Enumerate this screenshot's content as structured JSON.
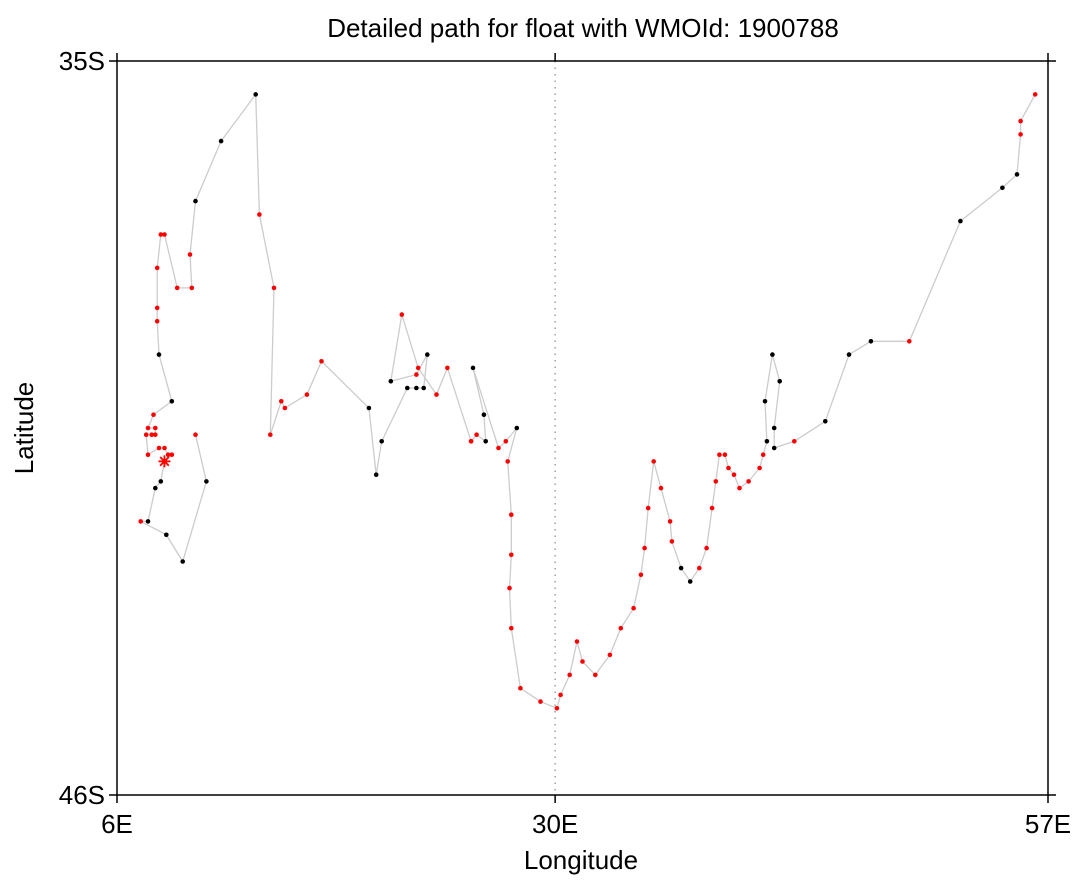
{
  "chart_data": {
    "type": "scatter",
    "title": "Detailed path for float with WMOId: 1900788",
    "xlabel": "Longitude",
    "ylabel": "Latitude",
    "xlim": [
      6,
      57
    ],
    "ylim": [
      -46,
      -35
    ],
    "x_ticks": [
      {
        "value": 6,
        "label": "6E"
      },
      {
        "value": 30,
        "label": "30E"
      },
      {
        "value": 57,
        "label": "57E"
      }
    ],
    "y_ticks": [
      {
        "value": -35,
        "label": "35S"
      },
      {
        "value": -46,
        "label": "46S"
      }
    ],
    "reference_line": {
      "x": 30,
      "style": "dotted"
    },
    "grid": false,
    "legend": "none",
    "colors": {
      "path": "#cccccc",
      "profile_marker": "#ff0000",
      "position_marker": "#000000",
      "deploy_marker": "#ff0000",
      "axes": "#000000"
    },
    "deploy_point": {
      "lon": 8.6,
      "lat": -41.0,
      "marker": "asterisk"
    },
    "series": [
      {
        "values": [
          {
            "lon": 8.6,
            "lat": -41.0,
            "c": "r"
          },
          {
            "lon": 9.0,
            "lat": -40.9,
            "c": "r"
          },
          {
            "lon": 8.8,
            "lat": -40.9,
            "c": "r"
          },
          {
            "lon": 8.6,
            "lat": -40.8,
            "c": "r"
          },
          {
            "lon": 8.3,
            "lat": -40.8,
            "c": "r"
          },
          {
            "lon": 7.7,
            "lat": -40.9,
            "c": "r"
          },
          {
            "lon": 7.6,
            "lat": -40.6,
            "c": "r"
          },
          {
            "lon": 7.9,
            "lat": -40.6,
            "c": "r"
          },
          {
            "lon": 8.1,
            "lat": -40.6,
            "c": "r"
          },
          {
            "lon": 8.1,
            "lat": -40.5,
            "c": "r"
          },
          {
            "lon": 7.7,
            "lat": -40.5,
            "c": "r"
          },
          {
            "lon": 8.0,
            "lat": -40.3,
            "c": "r"
          },
          {
            "lon": 9.0,
            "lat": -40.1,
            "c": "k"
          },
          {
            "lon": 8.3,
            "lat": -39.4,
            "c": "k"
          },
          {
            "lon": 8.2,
            "lat": -38.9,
            "c": "r"
          },
          {
            "lon": 8.2,
            "lat": -38.7,
            "c": "r"
          },
          {
            "lon": 8.2,
            "lat": -38.1,
            "c": "r"
          },
          {
            "lon": 8.4,
            "lat": -37.6,
            "c": "r"
          },
          {
            "lon": 8.6,
            "lat": -37.6,
            "c": "r"
          },
          {
            "lon": 9.3,
            "lat": -38.4,
            "c": "r"
          },
          {
            "lon": 10.1,
            "lat": -38.4,
            "c": "r"
          },
          {
            "lon": 10.0,
            "lat": -37.9,
            "c": "r"
          },
          {
            "lon": 10.3,
            "lat": -37.1,
            "c": "k"
          },
          {
            "lon": 11.7,
            "lat": -36.2,
            "c": "k"
          },
          {
            "lon": 13.6,
            "lat": -35.5,
            "c": "k"
          },
          {
            "lon": 13.8,
            "lat": -37.3,
            "c": "r"
          },
          {
            "lon": 14.6,
            "lat": -38.4,
            "c": "r"
          },
          {
            "lon": 14.4,
            "lat": -40.6,
            "c": "r"
          },
          {
            "lon": 15.0,
            "lat": -40.1,
            "c": "r"
          },
          {
            "lon": 15.2,
            "lat": -40.2,
            "c": "r"
          },
          {
            "lon": 16.4,
            "lat": -40.0,
            "c": "r"
          },
          {
            "lon": 17.2,
            "lat": -39.5,
            "c": "r"
          },
          {
            "lon": 19.8,
            "lat": -40.2,
            "c": "k"
          },
          {
            "lon": 20.2,
            "lat": -41.2,
            "c": "k"
          },
          {
            "lon": 20.5,
            "lat": -40.7,
            "c": "k"
          },
          {
            "lon": 21.9,
            "lat": -39.9,
            "c": "k"
          },
          {
            "lon": 22.4,
            "lat": -39.9,
            "c": "k"
          },
          {
            "lon": 22.8,
            "lat": -39.9,
            "c": "k"
          },
          {
            "lon": 23.0,
            "lat": -39.4,
            "c": "k"
          },
          {
            "lon": 22.4,
            "lat": -39.7,
            "c": "r"
          },
          {
            "lon": 21.0,
            "lat": -39.8,
            "c": "k"
          },
          {
            "lon": 21.6,
            "lat": -38.8,
            "c": "r"
          },
          {
            "lon": 22.5,
            "lat": -39.6,
            "c": "r"
          },
          {
            "lon": 23.5,
            "lat": -40.0,
            "c": "r"
          },
          {
            "lon": 24.1,
            "lat": -39.6,
            "c": "r"
          },
          {
            "lon": 25.4,
            "lat": -40.7,
            "c": "r"
          },
          {
            "lon": 25.4,
            "lat": -40.7,
            "c": "r"
          },
          {
            "lon": 25.7,
            "lat": -40.6,
            "c": "r"
          },
          {
            "lon": 26.2,
            "lat": -40.7,
            "c": "k"
          },
          {
            "lon": 26.1,
            "lat": -40.3,
            "c": "k"
          },
          {
            "lon": 25.5,
            "lat": -39.6,
            "c": "k"
          },
          {
            "lon": 26.9,
            "lat": -40.8,
            "c": "r"
          },
          {
            "lon": 27.3,
            "lat": -40.7,
            "c": "r"
          },
          {
            "lon": 27.9,
            "lat": -40.5,
            "c": "k"
          },
          {
            "lon": 27.4,
            "lat": -41.0,
            "c": "r"
          },
          {
            "lon": 27.6,
            "lat": -41.8,
            "c": "r"
          },
          {
            "lon": 27.6,
            "lat": -42.4,
            "c": "r"
          },
          {
            "lon": 27.5,
            "lat": -42.9,
            "c": "r"
          },
          {
            "lon": 27.6,
            "lat": -43.5,
            "c": "r"
          },
          {
            "lon": 28.1,
            "lat": -44.4,
            "c": "r"
          },
          {
            "lon": 29.2,
            "lat": -44.6,
            "c": "r"
          },
          {
            "lon": 30.1,
            "lat": -44.7,
            "c": "r"
          },
          {
            "lon": 30.3,
            "lat": -44.5,
            "c": "r"
          },
          {
            "lon": 30.8,
            "lat": -44.2,
            "c": "r"
          },
          {
            "lon": 31.2,
            "lat": -43.7,
            "c": "r"
          },
          {
            "lon": 31.5,
            "lat": -44.0,
            "c": "r"
          },
          {
            "lon": 32.2,
            "lat": -44.2,
            "c": "r"
          },
          {
            "lon": 33.0,
            "lat": -43.9,
            "c": "r"
          },
          {
            "lon": 33.6,
            "lat": -43.5,
            "c": "r"
          },
          {
            "lon": 34.3,
            "lat": -43.2,
            "c": "r"
          },
          {
            "lon": 34.7,
            "lat": -42.7,
            "c": "r"
          },
          {
            "lon": 34.9,
            "lat": -42.3,
            "c": "r"
          },
          {
            "lon": 35.1,
            "lat": -41.7,
            "c": "r"
          },
          {
            "lon": 35.4,
            "lat": -41.0,
            "c": "r"
          },
          {
            "lon": 35.8,
            "lat": -41.4,
            "c": "r"
          },
          {
            "lon": 36.3,
            "lat": -41.9,
            "c": "r"
          },
          {
            "lon": 36.4,
            "lat": -42.2,
            "c": "r"
          },
          {
            "lon": 36.9,
            "lat": -42.6,
            "c": "k"
          },
          {
            "lon": 37.4,
            "lat": -42.8,
            "c": "k"
          },
          {
            "lon": 37.9,
            "lat": -42.6,
            "c": "r"
          },
          {
            "lon": 38.3,
            "lat": -42.3,
            "c": "r"
          },
          {
            "lon": 38.6,
            "lat": -41.7,
            "c": "r"
          },
          {
            "lon": 38.8,
            "lat": -41.3,
            "c": "r"
          },
          {
            "lon": 39.0,
            "lat": -40.9,
            "c": "r"
          },
          {
            "lon": 39.3,
            "lat": -40.9,
            "c": "r"
          },
          {
            "lon": 39.5,
            "lat": -41.1,
            "c": "r"
          },
          {
            "lon": 39.8,
            "lat": -41.2,
            "c": "r"
          },
          {
            "lon": 40.1,
            "lat": -41.4,
            "c": "r"
          },
          {
            "lon": 40.6,
            "lat": -41.3,
            "c": "r"
          },
          {
            "lon": 41.2,
            "lat": -41.1,
            "c": "r"
          },
          {
            "lon": 41.4,
            "lat": -40.9,
            "c": "r"
          },
          {
            "lon": 41.6,
            "lat": -40.7,
            "c": "k"
          },
          {
            "lon": 41.5,
            "lat": -40.1,
            "c": "k"
          },
          {
            "lon": 41.9,
            "lat": -39.4,
            "c": "k"
          },
          {
            "lon": 42.3,
            "lat": -39.8,
            "c": "k"
          },
          {
            "lon": 42.0,
            "lat": -40.5,
            "c": "k"
          },
          {
            "lon": 42.0,
            "lat": -40.8,
            "c": "k"
          },
          {
            "lon": 43.1,
            "lat": -40.7,
            "c": "r"
          },
          {
            "lon": 44.8,
            "lat": -40.4,
            "c": "k"
          },
          {
            "lon": 46.1,
            "lat": -39.4,
            "c": "k"
          },
          {
            "lon": 47.3,
            "lat": -39.2,
            "c": "k"
          },
          {
            "lon": 49.4,
            "lat": -39.2,
            "c": "r"
          },
          {
            "lon": 52.2,
            "lat": -37.4,
            "c": "k"
          },
          {
            "lon": 54.5,
            "lat": -36.9,
            "c": "k"
          },
          {
            "lon": 55.3,
            "lat": -36.7,
            "c": "k"
          },
          {
            "lon": 55.5,
            "lat": -36.1,
            "c": "r"
          },
          {
            "lon": 55.5,
            "lat": -35.9,
            "c": "r"
          },
          {
            "lon": 56.3,
            "lat": -35.5,
            "c": "r"
          }
        ]
      },
      {
        "values": [
          {
            "lon": 8.6,
            "lat": -41.0,
            "c": "r"
          },
          {
            "lon": 8.4,
            "lat": -41.3,
            "c": "k"
          },
          {
            "lon": 8.1,
            "lat": -41.4,
            "c": "k"
          },
          {
            "lon": 7.7,
            "lat": -41.9,
            "c": "k"
          },
          {
            "lon": 7.3,
            "lat": -41.9,
            "c": "r"
          },
          {
            "lon": 8.7,
            "lat": -42.1,
            "c": "k"
          },
          {
            "lon": 9.6,
            "lat": -42.5,
            "c": "k"
          },
          {
            "lon": 10.9,
            "lat": -41.3,
            "c": "k"
          },
          {
            "lon": 10.3,
            "lat": -40.6,
            "c": "r"
          }
        ]
      }
    ]
  }
}
